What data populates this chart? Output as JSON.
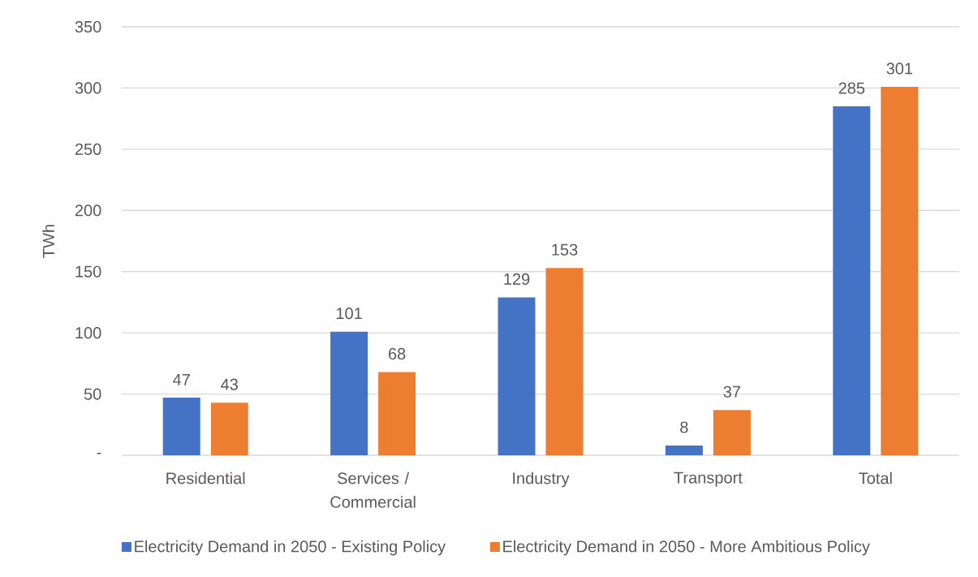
{
  "chart_data": {
    "type": "bar",
    "categories": [
      "Residential",
      "Services / Commercial",
      "Industry",
      "Transport",
      "Total"
    ],
    "series": [
      {
        "name": "Electricity Demand in 2050 - Existing Policy",
        "color": "#4472c4",
        "values": [
          47,
          101,
          129,
          8,
          285
        ]
      },
      {
        "name": "Electricity Demand in 2050 - More Ambitious Policy",
        "color": "#ed7d31",
        "values": [
          43,
          68,
          153,
          37,
          301
        ]
      }
    ],
    "ylabel": "TWh",
    "ylim": [
      0,
      350
    ],
    "yticks": [
      {
        "value": 0,
        "label": "-"
      },
      50,
      100,
      150,
      200,
      250,
      300,
      350
    ],
    "grid": "y",
    "legend": "bottom",
    "data_labels": true
  }
}
